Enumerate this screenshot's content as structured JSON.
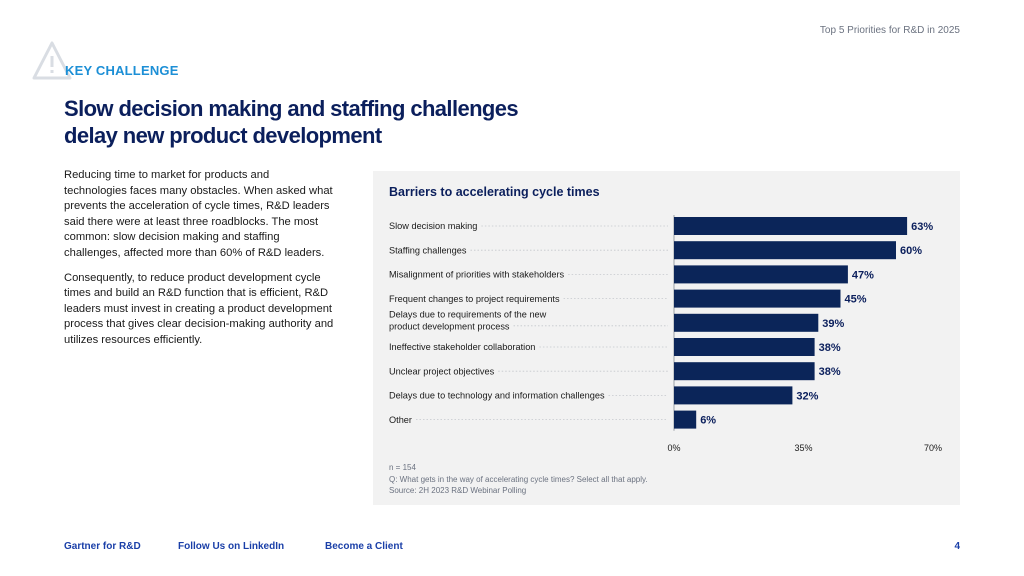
{
  "header": {
    "report_title": "Top 5 Priorities for R&D in 2025"
  },
  "icons": {
    "section_icon": "warning-triangle-icon"
  },
  "section": {
    "label": "KEY CHALLENGE",
    "headline_line1": "Slow decision making and staffing challenges",
    "headline_line2": "delay new product development"
  },
  "body": {
    "paragraphs": [
      "Reducing time to market for products and technologies faces many obstacles. When asked what prevents the acceleration of cycle times, R&D leaders said there were at least three roadblocks. The most common: slow decision making and staffing challenges, affected more than 60% of R&D leaders.",
      "Consequently, to reduce product development cycle times and build an R&D function that is efficient, R&D leaders must invest in creating a product development process that gives clear decision-making authority and utilizes resources efficiently."
    ]
  },
  "chart_data": {
    "type": "bar",
    "orientation": "horizontal",
    "title": "Barriers to accelerating cycle times",
    "categories": [
      [
        "Slow decision making"
      ],
      [
        "Staffing challenges"
      ],
      [
        "Misalignment of priorities with stakeholders"
      ],
      [
        "Frequent changes to project requirements"
      ],
      [
        "Delays due to requirements of the new",
        "product development process"
      ],
      [
        "Ineffective stakeholder collaboration"
      ],
      [
        "Unclear project objectives"
      ],
      [
        "Delays due to technology and information challenges"
      ],
      [
        "Other"
      ]
    ],
    "values": [
      63,
      60,
      47,
      45,
      39,
      38,
      38,
      32,
      6
    ],
    "value_suffix": "%",
    "xlim": [
      0,
      70
    ],
    "xticks": [
      0,
      35,
      70
    ],
    "xtick_labels": [
      "0%",
      "35%",
      "70%"
    ],
    "grid": false,
    "bar_color": "#0b2559"
  },
  "notes": {
    "n": "n = 154",
    "question": "Q: What gets in the way of accelerating cycle times? Select all that apply.",
    "source": "Source: 2H 2023 R&D Webinar Polling"
  },
  "footer": {
    "link1": "Gartner for R&D",
    "link2": "Follow Us on LinkedIn",
    "link3": "Become a Client",
    "page_number": "4"
  }
}
